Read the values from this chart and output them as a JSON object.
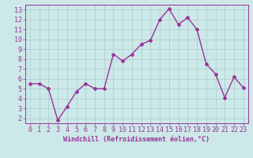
{
  "x": [
    0,
    1,
    2,
    3,
    4,
    5,
    6,
    7,
    8,
    9,
    10,
    11,
    12,
    13,
    14,
    15,
    16,
    17,
    18,
    19,
    20,
    21,
    22,
    23
  ],
  "y": [
    5.5,
    5.5,
    5.0,
    1.8,
    3.2,
    4.7,
    5.5,
    5.0,
    5.0,
    8.5,
    7.8,
    8.5,
    9.5,
    9.9,
    12.0,
    13.1,
    11.5,
    12.2,
    11.0,
    7.5,
    6.5,
    4.1,
    6.2,
    5.1
  ],
  "line_color": "#993399",
  "marker": "D",
  "marker_size": 2.0,
  "line_width": 1.0,
  "bg_color": "#cce8e8",
  "grid_color": "#aacccc",
  "axis_color": "#993399",
  "xlabel": "Windchill (Refroidissement éolien,°C)",
  "xlabel_color": "#993399",
  "xlabel_fontsize": 6.0,
  "tick_fontsize": 6.0,
  "ylim": [
    1.5,
    13.5
  ],
  "yticks": [
    2,
    3,
    4,
    5,
    6,
    7,
    8,
    9,
    10,
    11,
    12,
    13
  ],
  "xlim": [
    -0.5,
    23.5
  ],
  "xticks": [
    0,
    1,
    2,
    3,
    4,
    5,
    6,
    7,
    8,
    9,
    10,
    11,
    12,
    13,
    14,
    15,
    16,
    17,
    18,
    19,
    20,
    21,
    22,
    23
  ]
}
